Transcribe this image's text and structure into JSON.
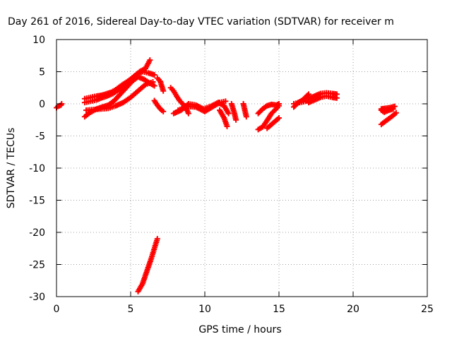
{
  "chart_data": {
    "type": "scatter",
    "title": "Day 261 of 2016, Sidereal Day-to-day VTEC variation (SDTVAR) for receiver m",
    "xlabel": "GPS time / hours",
    "ylabel": "SDTVAR / TECUs",
    "xlim": [
      0,
      25
    ],
    "ylim": [
      -30,
      10
    ],
    "x_ticks": [
      0,
      5,
      10,
      15,
      20,
      25
    ],
    "y_ticks": [
      -30,
      -25,
      -20,
      -15,
      -10,
      -5,
      0,
      5,
      10
    ],
    "grid": true,
    "marker": "+",
    "color": "#ff0000",
    "series": [
      {
        "segments": [
          {
            "x": [
              0.0,
              0.1,
              0.2,
              0.3,
              0.35
            ],
            "y": [
              -0.6,
              -0.4,
              -0.3,
              -0.2,
              0.0
            ]
          },
          {
            "x": [
              1.9,
              2.3,
              2.7,
              3.0,
              3.3,
              3.7,
              4.0,
              4.4,
              4.8,
              5.2,
              5.6,
              6.0,
              6.3
            ],
            "y": [
              0.8,
              1.0,
              1.2,
              1.3,
              1.5,
              1.8,
              2.2,
              2.9,
              3.5,
              4.2,
              5.0,
              5.5,
              6.8
            ]
          },
          {
            "x": [
              1.9,
              2.3,
              2.7,
              3.0,
              3.4,
              3.8,
              4.2,
              4.6,
              5.0,
              5.4,
              5.8,
              6.2,
              6.6
            ],
            "y": [
              0.2,
              0.4,
              0.6,
              0.9,
              1.2,
              1.6,
              2.2,
              2.8,
              3.8,
              4.6,
              5.0,
              4.8,
              4.5
            ]
          },
          {
            "x": [
              1.9,
              2.3,
              2.7,
              3.1,
              3.5,
              3.9,
              4.3,
              4.7,
              5.1,
              5.5,
              5.9,
              6.3,
              6.6
            ],
            "y": [
              -2.0,
              -1.3,
              -0.8,
              -0.5,
              -0.2,
              0.5,
              1.5,
              2.5,
              3.5,
              4.2,
              3.8,
              3.2,
              2.8
            ]
          },
          {
            "x": [
              2.0,
              2.5,
              3.0,
              3.5,
              4.0,
              4.5,
              5.0,
              5.5,
              6.0,
              6.5
            ],
            "y": [
              -1.0,
              -0.9,
              -0.8,
              -0.7,
              -0.3,
              0.2,
              1.0,
              2.0,
              3.0,
              3.4
            ]
          },
          {
            "x": [
              6.8,
              7.0,
              7.2
            ],
            "y": [
              4.0,
              3.5,
              2.0
            ]
          },
          {
            "x": [
              6.6,
              6.8,
              7.0,
              7.2
            ],
            "y": [
              0.5,
              -0.2,
              -0.8,
              -1.2
            ]
          },
          {
            "x": [
              7.7,
              7.9,
              8.1,
              8.3,
              8.5,
              8.7,
              8.9
            ],
            "y": [
              2.5,
              2.0,
              1.2,
              0.5,
              0.0,
              -0.5,
              -1.5
            ]
          },
          {
            "x": [
              7.9,
              8.4,
              8.9,
              9.4,
              9.9,
              10.4,
              10.9,
              11.3,
              11.6
            ],
            "y": [
              -1.5,
              -1.0,
              0.0,
              -0.2,
              -0.8,
              -0.4,
              0.2,
              -0.3,
              -1.5
            ]
          },
          {
            "x": [
              8.2,
              8.8,
              9.4,
              10.0,
              10.5,
              11.0,
              11.4
            ],
            "y": [
              -1.0,
              -0.4,
              -0.5,
              -1.2,
              -0.5,
              0.2,
              0.4
            ]
          },
          {
            "x": [
              11.0,
              11.3,
              11.5
            ],
            "y": [
              -1.0,
              -2.2,
              -3.5
            ]
          },
          {
            "x": [
              11.8,
              12.0,
              12.1
            ],
            "y": [
              0.0,
              -1.5,
              -2.5
            ]
          },
          {
            "x": [
              12.6,
              12.7,
              12.8
            ],
            "y": [
              0.0,
              -1.0,
              -2.0
            ]
          },
          {
            "x": [
              13.6,
              13.9,
              14.2,
              14.5,
              14.8,
              15.0
            ],
            "y": [
              -1.5,
              -0.8,
              -0.3,
              -0.1,
              -0.2,
              0.0
            ]
          },
          {
            "x": [
              13.6,
              13.9,
              14.2,
              14.5,
              14.8,
              15.0
            ],
            "y": [
              -4.0,
              -3.6,
              -2.6,
              -1.5,
              -0.8,
              -0.3
            ]
          },
          {
            "x": [
              14.2,
              14.5,
              14.8,
              15.0
            ],
            "y": [
              -3.8,
              -3.2,
              -2.6,
              -2.2
            ]
          },
          {
            "x": [
              16.0,
              16.3,
              16.6,
              17.0
            ],
            "y": [
              -0.5,
              0.2,
              0.6,
              1.5
            ]
          },
          {
            "x": [
              16.0,
              16.4,
              16.8,
              17.0
            ],
            "y": [
              0.0,
              0.2,
              0.4,
              0.5
            ]
          },
          {
            "x": [
              17.0,
              17.4,
              17.8,
              18.2,
              18.6,
              18.9
            ],
            "y": [
              0.8,
              1.2,
              1.6,
              1.7,
              1.6,
              1.5
            ]
          },
          {
            "x": [
              17.0,
              17.4,
              17.8,
              18.2,
              18.6,
              18.9
            ],
            "y": [
              0.2,
              0.6,
              1.0,
              1.2,
              1.0,
              0.9
            ]
          },
          {
            "x": [
              21.9,
              22.2,
              22.5,
              22.8
            ],
            "y": [
              -0.8,
              -0.7,
              -0.6,
              -0.4
            ]
          },
          {
            "x": [
              21.9,
              22.1,
              22.4,
              22.7
            ],
            "y": [
              -1.0,
              -1.3,
              -1.0,
              -0.8
            ]
          },
          {
            "x": [
              21.9,
              22.3,
              22.7,
              22.9
            ],
            "y": [
              -3.2,
              -2.5,
              -1.8,
              -1.4
            ]
          },
          {
            "x": [
              5.5,
              5.8,
              6.1,
              6.4,
              6.8
            ],
            "y": [
              -29.2,
              -28.0,
              -26.0,
              -24.0,
              -21.0
            ]
          }
        ]
      }
    ]
  }
}
